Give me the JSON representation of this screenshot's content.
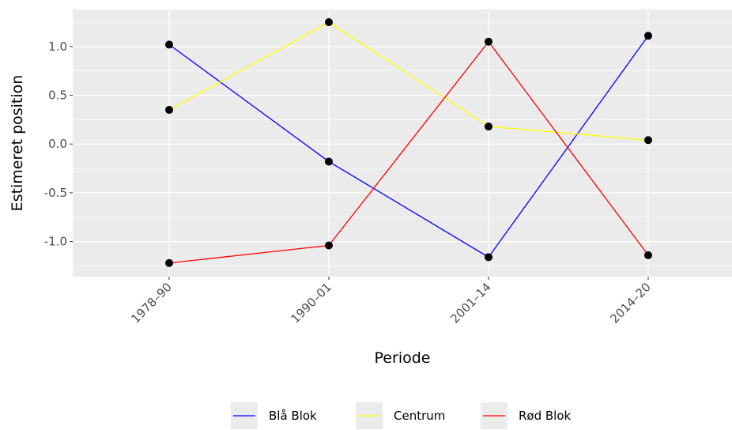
{
  "chart_data": {
    "type": "line",
    "categories": [
      "1978–90",
      "1990–01",
      "2001–14",
      "2014–20"
    ],
    "series": [
      {
        "name": "Blå Blok",
        "color": "#0000ff",
        "values": [
          1.02,
          -0.18,
          -1.16,
          1.11
        ]
      },
      {
        "name": "Centrum",
        "color": "#ffff00",
        "values": [
          0.35,
          1.25,
          0.18,
          0.04
        ]
      },
      {
        "name": "Rød Blok",
        "color": "#ff0000",
        "values": [
          -1.22,
          -1.04,
          1.05,
          -1.14
        ]
      }
    ],
    "xlabel": "Periode",
    "ylabel": "Estimeret position",
    "ylim": [
      -1.36,
      1.38
    ],
    "yticks": [
      1.0,
      0.5,
      0.0,
      -0.5,
      -1.0
    ],
    "ytick_labels": [
      "1.0",
      "0.5",
      "0.0",
      "-0.5",
      "-1.0"
    ],
    "grid": true,
    "legend_position": "bottom"
  }
}
